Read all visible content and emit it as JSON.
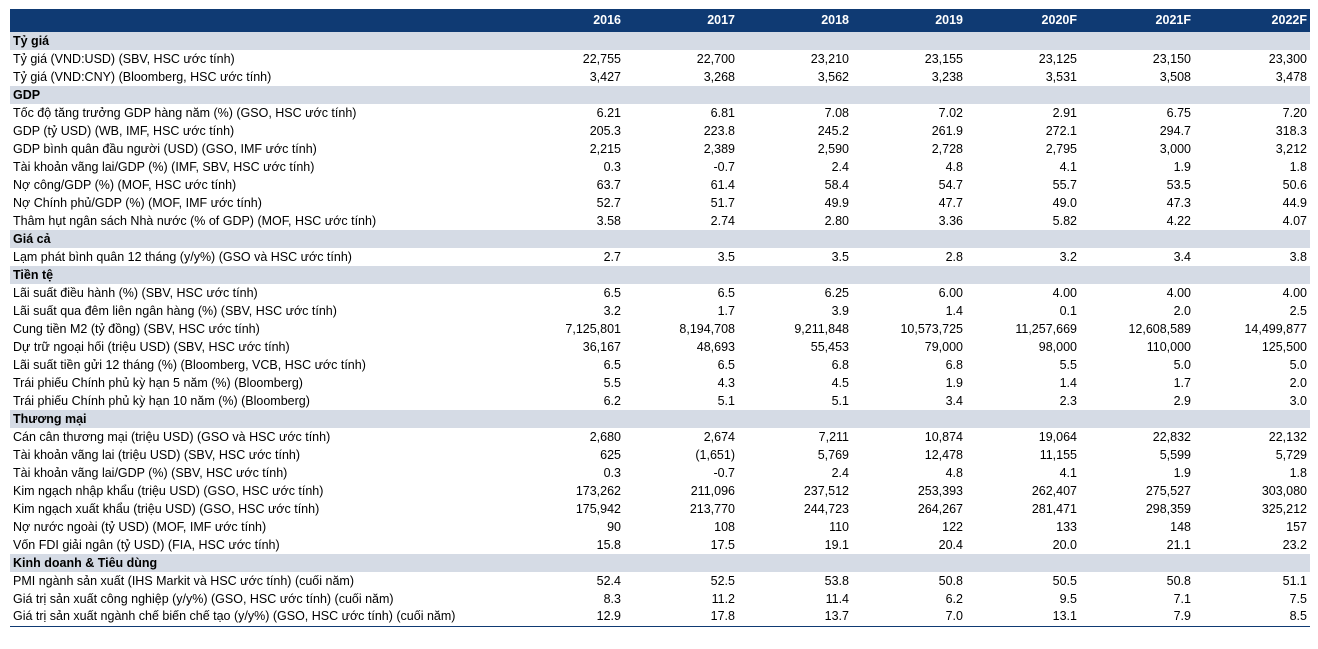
{
  "header": {
    "years": [
      "2016",
      "2017",
      "2018",
      "2019",
      "2020F",
      "2021F",
      "2022F"
    ]
  },
  "sections": [
    {
      "title": "Tỷ giá",
      "rows": [
        {
          "label": "Tỷ giá (VND:USD) (SBV, HSC ước tính)",
          "values": [
            "22,755",
            "22,700",
            "23,210",
            "23,155",
            "23,125",
            "23,150",
            "23,300"
          ]
        },
        {
          "label": "Tỷ giá (VND:CNY) (Bloomberg, HSC ước tính)",
          "values": [
            "3,427",
            "3,268",
            "3,562",
            "3,238",
            "3,531",
            "3,508",
            "3,478"
          ]
        }
      ]
    },
    {
      "title": "GDP",
      "rows": [
        {
          "label": "Tốc độ tăng trưởng GDP hàng năm (%) (GSO, HSC ước tính)",
          "values": [
            "6.21",
            "6.81",
            "7.08",
            "7.02",
            "2.91",
            "6.75",
            "7.20"
          ]
        },
        {
          "label": "GDP (tỷ USD) (WB, IMF, HSC ước tính)",
          "values": [
            "205.3",
            "223.8",
            "245.2",
            "261.9",
            "272.1",
            "294.7",
            "318.3"
          ]
        },
        {
          "label": "GDP bình quân đầu người (USD) (GSO, IMF ước tính)",
          "values": [
            "2,215",
            "2,389",
            "2,590",
            "2,728",
            "2,795",
            "3,000",
            "3,212"
          ]
        },
        {
          "label": "Tài khoản vãng lai/GDP (%) (IMF, SBV, HSC ước tính)",
          "values": [
            "0.3",
            "-0.7",
            "2.4",
            "4.8",
            "4.1",
            "1.9",
            "1.8"
          ]
        },
        {
          "label": "Nợ công/GDP (%) (MOF, HSC ước tính)",
          "values": [
            "63.7",
            "61.4",
            "58.4",
            "54.7",
            "55.7",
            "53.5",
            "50.6"
          ]
        },
        {
          "label": "Nợ Chính phủ/GDP (%) (MOF, IMF ước tính)",
          "values": [
            "52.7",
            "51.7",
            "49.9",
            "47.7",
            "49.0",
            "47.3",
            "44.9"
          ]
        },
        {
          "label": "Thâm hụt ngân sách Nhà nước (% of GDP) (MOF, HSC ước tính)",
          "values": [
            "3.58",
            "2.74",
            "2.80",
            "3.36",
            "5.82",
            "4.22",
            "4.07"
          ]
        }
      ]
    },
    {
      "title": "Giá cả",
      "rows": [
        {
          "label": "Lạm phát bình quân 12 tháng (y/y%) (GSO và HSC ước tính)",
          "values": [
            "2.7",
            "3.5",
            "3.5",
            "2.8",
            "3.2",
            "3.4",
            "3.8"
          ]
        }
      ]
    },
    {
      "title": "Tiền tệ",
      "rows": [
        {
          "label": "Lãi suất điều hành (%) (SBV, HSC ước tính)",
          "values": [
            "6.5",
            "6.5",
            "6.25",
            "6.00",
            "4.00",
            "4.00",
            "4.00"
          ]
        },
        {
          "label": "Lãi suất qua đêm liên ngân hàng (%) (SBV, HSC ước tính)",
          "values": [
            "3.2",
            "1.7",
            "3.9",
            "1.4",
            "0.1",
            "2.0",
            "2.5"
          ]
        },
        {
          "label": "Cung tiền M2 (tỷ đồng) (SBV, HSC ước tính)",
          "values": [
            "7,125,801",
            "8,194,708",
            "9,211,848",
            "10,573,725",
            "11,257,669",
            "12,608,589",
            "14,499,877"
          ]
        },
        {
          "label": "Dự trữ ngoại hối (triệu USD) (SBV, HSC ước tính)",
          "values": [
            "36,167",
            "48,693",
            "55,453",
            "79,000",
            "98,000",
            "110,000",
            "125,500"
          ]
        },
        {
          "label": "Lãi suất tiền gửi 12 tháng (%) (Bloomberg, VCB, HSC ước tính)",
          "values": [
            "6.5",
            "6.5",
            "6.8",
            "6.8",
            "5.5",
            "5.0",
            "5.0"
          ]
        },
        {
          "label": "Trái phiếu Chính phủ kỳ hạn 5 năm (%) (Bloomberg)",
          "values": [
            "5.5",
            "4.3",
            "4.5",
            "1.9",
            "1.4",
            "1.7",
            "2.0"
          ]
        },
        {
          "label": "Trái phiếu Chính phủ kỳ hạn 10 năm (%) (Bloomberg)",
          "values": [
            "6.2",
            "5.1",
            "5.1",
            "3.4",
            "2.3",
            "2.9",
            "3.0"
          ]
        }
      ]
    },
    {
      "title": "Thương mại",
      "rows": [
        {
          "label": "Cán cân thương mại (triệu USD) (GSO và HSC ước tính)",
          "values": [
            "2,680",
            "2,674",
            "7,211",
            "10,874",
            "19,064",
            "22,832",
            "22,132"
          ]
        },
        {
          "label": "Tài khoản vãng lai (triệu USD) (SBV, HSC ước tính)",
          "values": [
            "625",
            "(1,651)",
            "5,769",
            "12,478",
            "11,155",
            "5,599",
            "5,729"
          ]
        },
        {
          "label": "Tài khoản vãng lai/GDP (%) (SBV, HSC ước tính)",
          "values": [
            "0.3",
            "-0.7",
            "2.4",
            "4.8",
            "4.1",
            "1.9",
            "1.8"
          ]
        },
        {
          "label": "Kim ngạch nhập khẩu (triệu USD) (GSO, HSC ước tính)",
          "values": [
            "173,262",
            "211,096",
            "237,512",
            "253,393",
            "262,407",
            "275,527",
            "303,080"
          ]
        },
        {
          "label": "Kim ngạch xuất khẩu (triệu USD) (GSO, HSC ước tính)",
          "values": [
            "175,942",
            "213,770",
            "244,723",
            "264,267",
            "281,471",
            "298,359",
            "325,212"
          ]
        },
        {
          "label": "Nợ nước ngoài (tỷ USD) (MOF, IMF ước tính)",
          "values": [
            "90",
            "108",
            "110",
            "122",
            "133",
            "148",
            "157"
          ]
        },
        {
          "label": "Vốn FDI giải ngân (tỷ USD) (FIA, HSC ước tính)",
          "values": [
            "15.8",
            "17.5",
            "19.1",
            "20.4",
            "20.0",
            "21.1",
            "23.2"
          ]
        }
      ]
    },
    {
      "title": "Kinh doanh & Tiêu dùng",
      "rows": [
        {
          "label": "PMI ngành sản xuất (IHS Markit và HSC ước tính) (cuối năm)",
          "values": [
            "52.4",
            "52.5",
            "53.8",
            "50.8",
            "50.5",
            "50.8",
            "51.1"
          ]
        },
        {
          "label": "Giá trị sản xuất công nghiệp (y/y%) (GSO, HSC ước tính) (cuối năm)",
          "values": [
            "8.3",
            "11.2",
            "11.4",
            "6.2",
            "9.5",
            "7.1",
            "7.5"
          ]
        },
        {
          "label": "Giá trị sản xuất ngành chế biến chế tạo (y/y%) (GSO, HSC ước tính) (cuối năm)",
          "values": [
            "12.9",
            "17.8",
            "13.7",
            "7.0",
            "13.1",
            "7.9",
            "8.5"
          ]
        }
      ]
    }
  ]
}
